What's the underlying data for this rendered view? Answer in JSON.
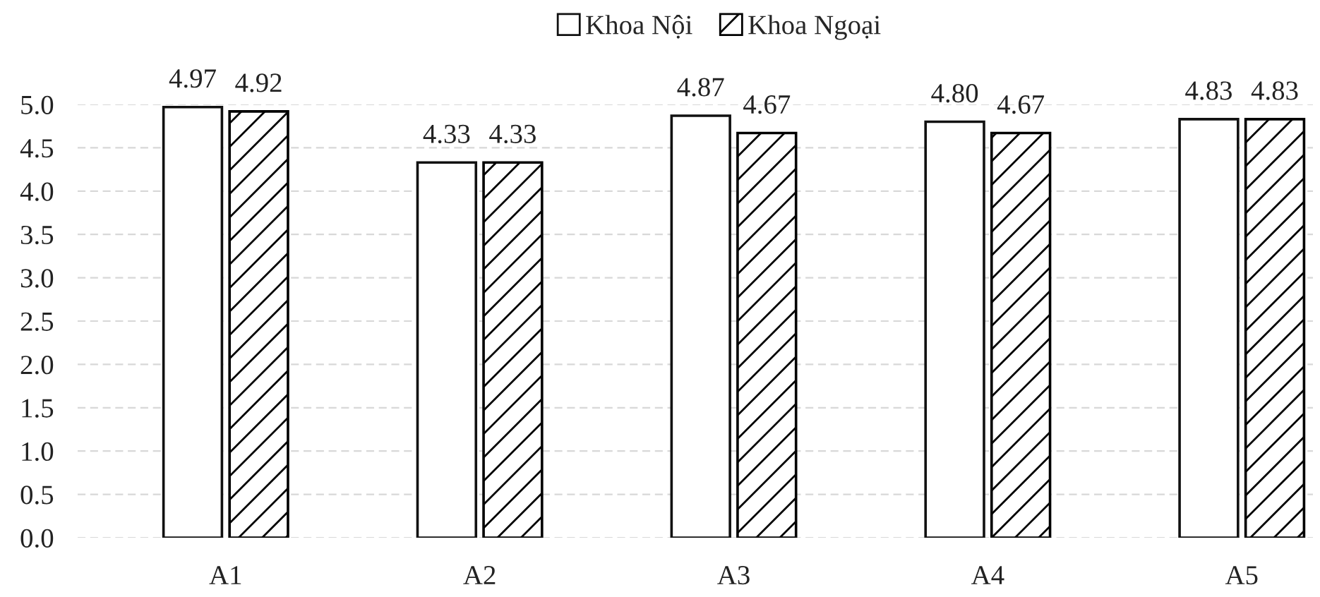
{
  "chart_data": {
    "type": "bar",
    "categories": [
      "A1",
      "A2",
      "A3",
      "A4",
      "A5"
    ],
    "series": [
      {
        "name": "Khoa Nội",
        "color": "#ffffff",
        "values": [
          4.97,
          4.33,
          4.87,
          4.8,
          4.83
        ],
        "value_labels": [
          "4.97",
          "4.33",
          "4.87",
          "4.80",
          "4.83"
        ]
      },
      {
        "name": "Khoa Ngoại",
        "color": "#000000",
        "values": [
          4.92,
          4.33,
          4.67,
          4.67,
          4.83
        ],
        "value_labels": [
          "4.92",
          "4.33",
          "4.67",
          "4.67",
          "4.83"
        ]
      }
    ],
    "ylim": [
      0,
      5
    ],
    "yticks": [
      {
        "value": 0,
        "label": "0.0"
      },
      {
        "value": 0.5,
        "label": "0.5"
      },
      {
        "value": 1,
        "label": "1.0"
      },
      {
        "value": 1.5,
        "label": "1.5"
      },
      {
        "value": 2,
        "label": "2.0"
      },
      {
        "value": 2.5,
        "label": "2.5"
      },
      {
        "value": 3,
        "label": "3.0"
      },
      {
        "value": 3.5,
        "label": "3.5"
      },
      {
        "value": 4,
        "label": "4.0"
      },
      {
        "value": 4.5,
        "label": "4.5"
      },
      {
        "value": 5,
        "label": "5.0"
      }
    ],
    "grid": "y",
    "legend": "top"
  }
}
